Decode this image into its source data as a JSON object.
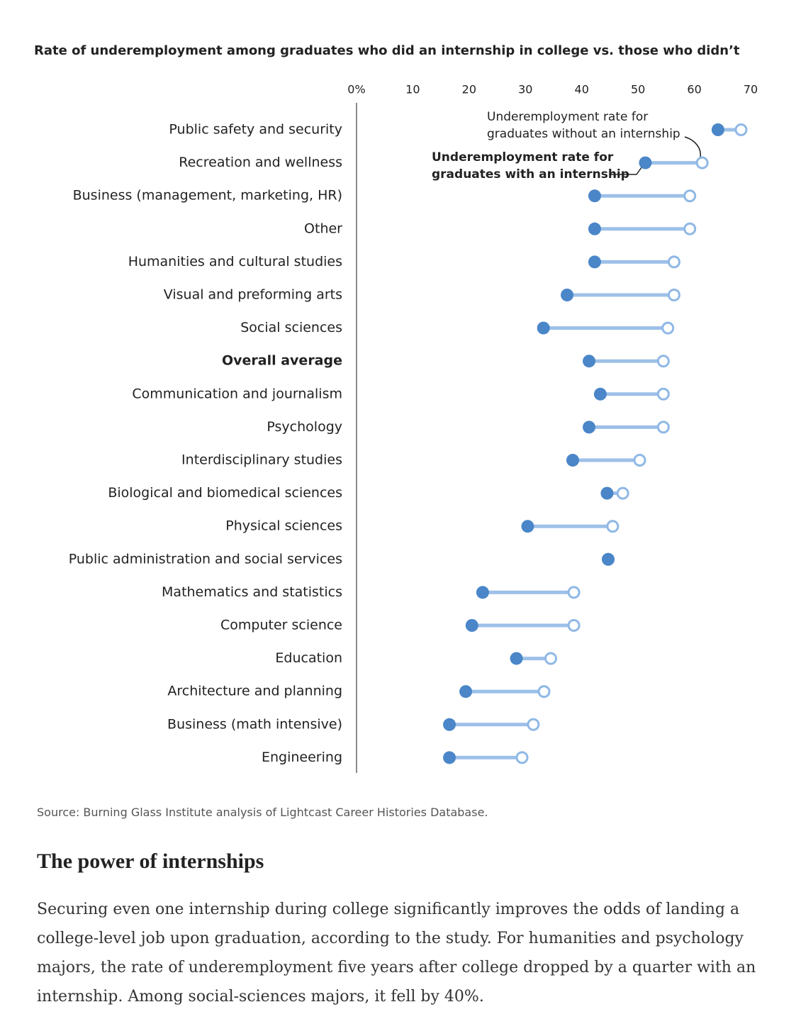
{
  "chart_data": {
    "type": "dumbbell",
    "title": "Rate of underemployment among graduates who did an internship in college vs. those who didn’t",
    "categories": [
      "Public safety and security",
      "Recreation and wellness",
      "Business (management, marketing, HR)",
      "Other",
      "Humanities and cultural studies",
      "Visual and preforming arts",
      "Social sciences",
      "Overall average",
      "Communication and journalism",
      "Psychology",
      "Interdisciplinary studies",
      "Biological and biomedical sciences",
      "Physical sciences",
      "Public administration and social services",
      "Mathematics and statistics",
      "Computer science",
      "Education",
      "Architecture and planning",
      "Business (math intensive)",
      "Engineering"
    ],
    "highlight_index": 7,
    "series": [
      {
        "color": "#4a86c8",
        "values": [
          64.2,
          51.3,
          42.3,
          42.3,
          42.3,
          37.4,
          33.2,
          41.3,
          43.3,
          41.3,
          38.4,
          44.5,
          30.4,
          44.7,
          22.4,
          20.5,
          28.4,
          19.4,
          16.5,
          16.5
        ]
      },
      {
        "color": "#8fb8e6",
        "values": [
          68.3,
          61.4,
          59.2,
          59.2,
          56.4,
          56.4,
          55.3,
          54.5,
          54.5,
          54.5,
          50.3,
          47.3,
          45.5,
          44.7,
          38.6,
          38.6,
          34.5,
          33.3,
          31.4,
          29.4
        ]
      }
    ],
    "connector_color": "#9dc0e8",
    "xlim": [
      0,
      70
    ],
    "xticks": [
      {
        "value": 0,
        "label": "0%"
      },
      10,
      20,
      30,
      40,
      50,
      60,
      70
    ],
    "annotations": [
      {
        "lines": [
          "Underemployment rate for",
          "graduates without an internship"
        ]
      },
      {
        "lines": [
          "Underemployment rate for",
          "graduates with an internship"
        ]
      }
    ],
    "source": "Source: Burning Glass Institute analysis of Lightcast Career Histories Database."
  },
  "article": {
    "heading": "The power of internships",
    "paragraph": "Securing even one internship during college significantly improves the odds of landing a college-level job upon graduation, according to the study. For humanities and psychology majors, the rate of underemployment five years after college dropped by a quarter with an internship. Among social-sciences majors, it fell by 40%."
  }
}
